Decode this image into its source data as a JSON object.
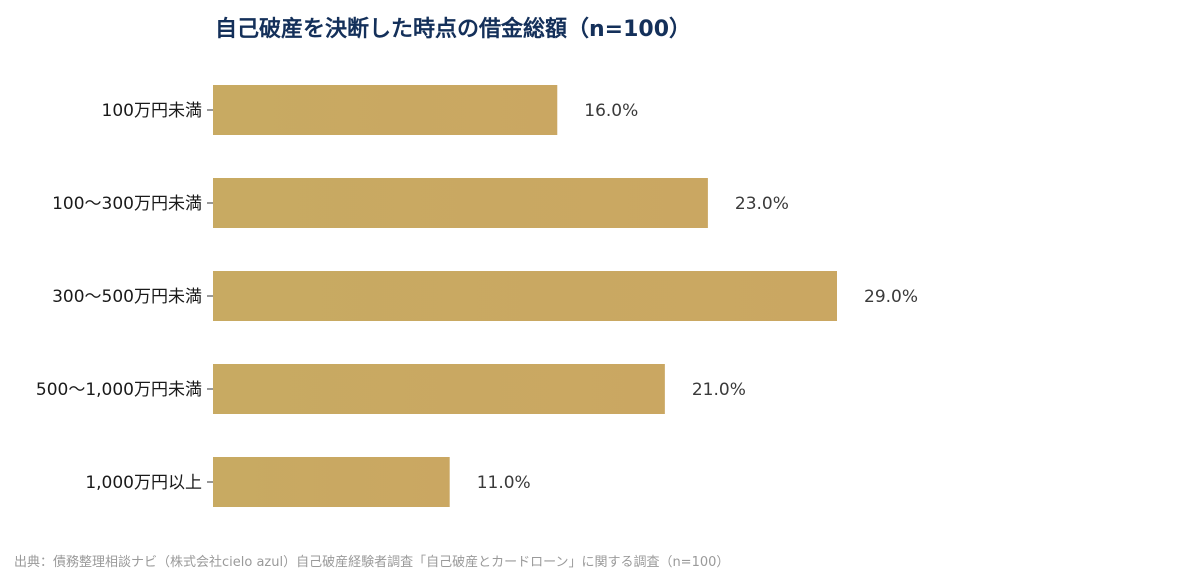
{
  "chart_data": {
    "type": "bar",
    "orientation": "horizontal",
    "title": "自己破産を決断した時点の借金総額（n=100）",
    "categories": [
      "100万円未満",
      "100〜300万円未満",
      "300〜500万円未満",
      "500〜1,000万円未満",
      "1,000万円以上"
    ],
    "values": [
      16.0,
      23.0,
      29.0,
      21.0,
      11.0
    ],
    "value_labels": [
      "16.0%",
      "23.0%",
      "29.0%",
      "21.0%",
      "11.0%"
    ],
    "xlim": [
      0,
      40
    ],
    "grid": false,
    "colors": {
      "bar_start": "#c8aa62",
      "bar_end": "#caa762",
      "title": "#14305a"
    }
  },
  "source": "出典：債務整理相談ナビ（株式会社cielo azul）自己破産経験者調査「自己破産とカードローン」に関する調査（n=100）"
}
